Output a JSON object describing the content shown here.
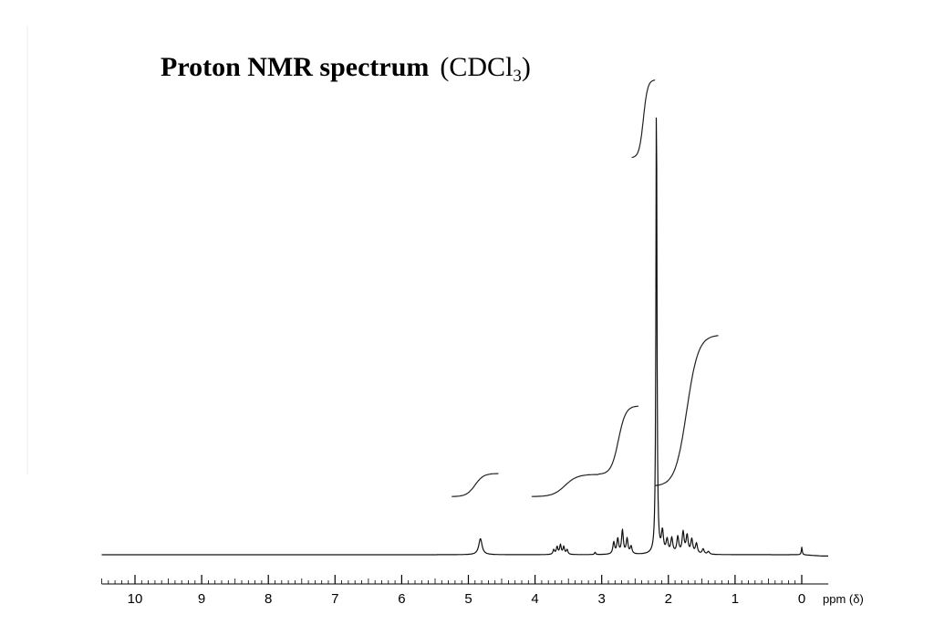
{
  "chart_data": {
    "type": "line",
    "title": {
      "main": "Proton NMR spectrum",
      "solvent_open": "(CDCl",
      "solvent_sub": "3",
      "solvent_close": ")"
    },
    "xlabel": "ppm (δ)",
    "ylabel": "",
    "xlim": [
      10.5,
      -0.4
    ],
    "x_reversed": true,
    "ylim": [
      0,
      100
    ],
    "grid": false,
    "legend": "none",
    "x_ticks": [
      10,
      9,
      8,
      7,
      6,
      5,
      4,
      3,
      2,
      1,
      0
    ],
    "x_tick_labels": [
      "10",
      "9",
      "8",
      "7",
      "6",
      "5",
      "4",
      "3",
      "2",
      "1",
      "0"
    ],
    "minor_tick_step": 0.1,
    "baseline": 0,
    "series": [
      {
        "peaks": [
          {
            "ppm": 4.82,
            "height": 3.4,
            "width": 0.03
          },
          {
            "ppm": 3.72,
            "height": 1.0,
            "width": 0.014
          },
          {
            "ppm": 3.67,
            "height": 1.6,
            "width": 0.014
          },
          {
            "ppm": 3.62,
            "height": 2.0,
            "width": 0.014
          },
          {
            "ppm": 3.57,
            "height": 1.6,
            "width": 0.014
          },
          {
            "ppm": 3.52,
            "height": 1.0,
            "width": 0.014
          },
          {
            "ppm": 3.1,
            "height": 0.5,
            "width": 0.01
          },
          {
            "ppm": 2.82,
            "height": 2.5,
            "width": 0.016
          },
          {
            "ppm": 2.76,
            "height": 3.2,
            "width": 0.016
          },
          {
            "ppm": 2.69,
            "height": 5.0,
            "width": 0.016
          },
          {
            "ppm": 2.62,
            "height": 3.2,
            "width": 0.016
          },
          {
            "ppm": 2.56,
            "height": 1.6,
            "width": 0.016
          },
          {
            "ppm": 2.18,
            "height": 100,
            "width": 0.009
          },
          {
            "ppm": 2.09,
            "height": 4.5,
            "width": 0.018
          },
          {
            "ppm": 2.02,
            "height": 2.8,
            "width": 0.018
          },
          {
            "ppm": 1.95,
            "height": 3.2,
            "width": 0.018
          },
          {
            "ppm": 1.86,
            "height": 3.5,
            "width": 0.018
          },
          {
            "ppm": 1.78,
            "height": 4.5,
            "width": 0.018
          },
          {
            "ppm": 1.72,
            "height": 3.8,
            "width": 0.018
          },
          {
            "ppm": 1.65,
            "height": 3.0,
            "width": 0.018
          },
          {
            "ppm": 1.58,
            "height": 2.2,
            "width": 0.018
          },
          {
            "ppm": 1.48,
            "height": 1.1,
            "width": 0.018
          },
          {
            "ppm": 1.4,
            "height": 0.6,
            "width": 0.018
          },
          {
            "ppm": 0.0,
            "height": 1.6,
            "width": 0.008
          }
        ]
      }
    ],
    "integrals": [
      {
        "ppm_start": 5.25,
        "ppm_end": 4.55,
        "y_start": 12.3,
        "y_end": 17.2
      },
      {
        "ppm_start": 4.05,
        "ppm_end": 3.05,
        "y_start": 12.3,
        "y_end": 17.0
      },
      {
        "ppm_start": 3.05,
        "ppm_end": 2.45,
        "y_start": 17.0,
        "y_end": 31.5
      },
      {
        "ppm_start": 2.55,
        "ppm_end": 2.2,
        "y_start": 84.0,
        "y_end": 100.5
      },
      {
        "ppm_start": 2.2,
        "ppm_end": 1.25,
        "y_start": 14.5,
        "y_end": 46.5
      }
    ]
  }
}
